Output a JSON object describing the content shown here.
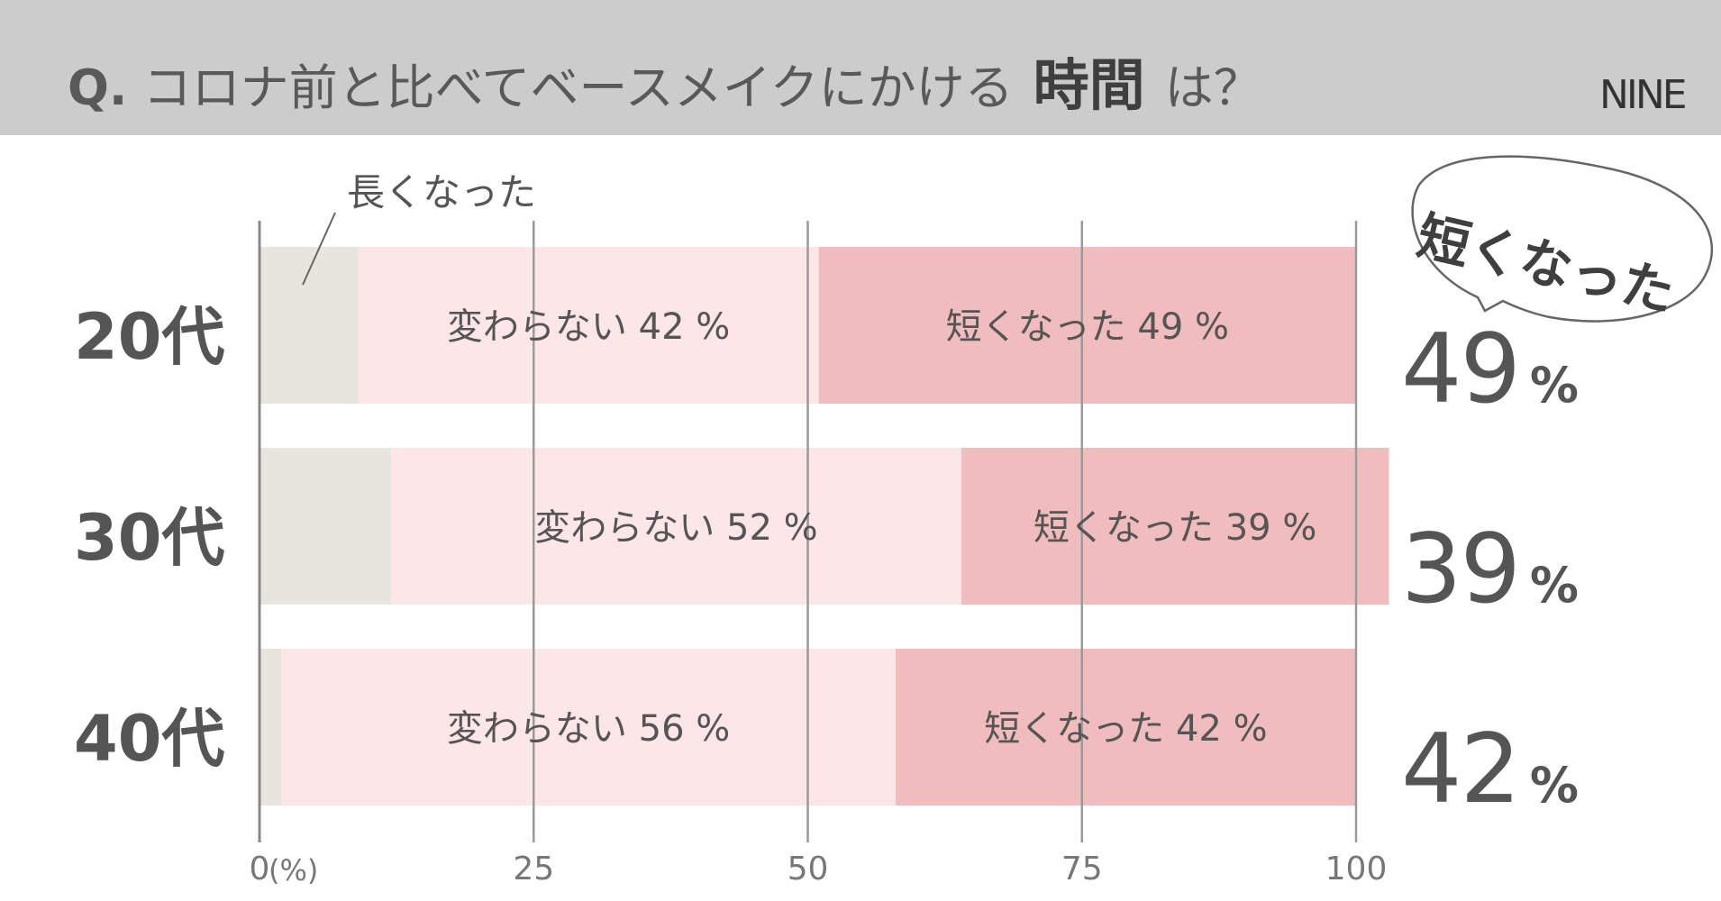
{
  "title": {
    "prefix": "Q.",
    "text_before": "コロナ前と比べてベースメイクにかける",
    "emphasis": "時間",
    "text_after": "は？"
  },
  "logo": "NINE",
  "callout_label": "長くなった",
  "bubble_label": "短くなった",
  "chart_data": {
    "type": "bar",
    "orientation": "horizontal-stacked",
    "categories": [
      "20代",
      "30代",
      "40代"
    ],
    "series": [
      {
        "name": "長くなった",
        "values": [
          9,
          12,
          2
        ],
        "color": "#e8e4de"
      },
      {
        "name": "変わらない",
        "values": [
          42,
          52,
          56
        ],
        "color": "#fde6e7"
      },
      {
        "name": "短くなった",
        "values": [
          49,
          39,
          42
        ],
        "color": "#f0bcbd"
      }
    ],
    "segment_labels": [
      {
        "category": "20代",
        "unchanged": "変わらない 42 %",
        "shorter": "短くなった 49 %"
      },
      {
        "category": "30代",
        "unchanged": "変わらない 52 %",
        "shorter": "短くなった 39 %"
      },
      {
        "category": "40代",
        "unchanged": "変わらない 56 %",
        "shorter": "短くなった 42 %"
      }
    ],
    "highlight": [
      {
        "value": "49",
        "unit": "%"
      },
      {
        "value": "39",
        "unit": "%"
      },
      {
        "value": "42",
        "unit": "%"
      }
    ],
    "xlim": [
      0,
      100
    ],
    "xticks": [
      0,
      25,
      50,
      75,
      100
    ],
    "xtick_labels": [
      "0",
      "25",
      "50",
      "75",
      "100"
    ],
    "x_unit_label": "(%)",
    "grid": true
  }
}
